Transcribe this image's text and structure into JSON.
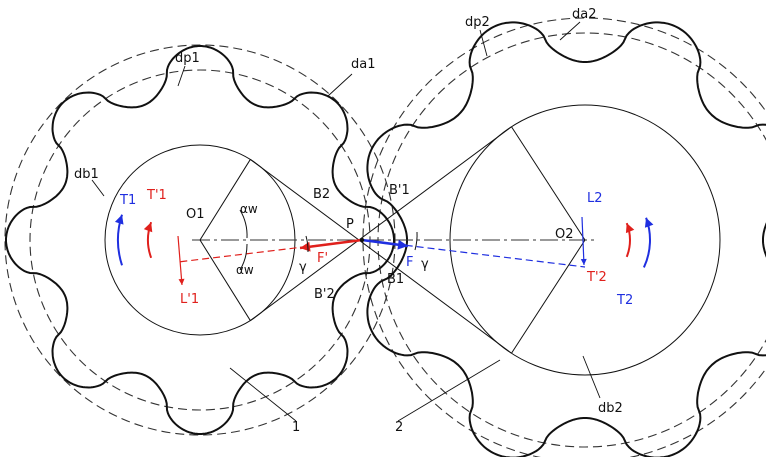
{
  "labels": {
    "dp1": "dp1",
    "da1": "da1",
    "dp2": "dp2",
    "da2": "da2",
    "db1": "db1",
    "db2": "db2",
    "O1": "O1",
    "O2": "O2",
    "T1": "T1",
    "T1p": "T'1",
    "T2": "T2",
    "T2p": "T'2",
    "L1p": "L'1",
    "L2": "L2",
    "B1": "B1",
    "B2": "B2",
    "B1p": "B'1",
    "B2p": "B'2",
    "P": "P",
    "F": "F",
    "Fp": "F'",
    "alpha_w_top": "αw",
    "alpha_w_bottom": "αw",
    "gamma_left": "γ",
    "gamma_right": "γ",
    "gear1": "1",
    "gear2": "2"
  },
  "colors": {
    "line": "#111111",
    "dashed": "#333333",
    "red": "#e0201c",
    "blue": "#1f2fe0"
  },
  "gears": [
    {
      "id": "gear-1",
      "teeth": 8
    },
    {
      "id": "gear-2",
      "teeth": 8
    }
  ]
}
